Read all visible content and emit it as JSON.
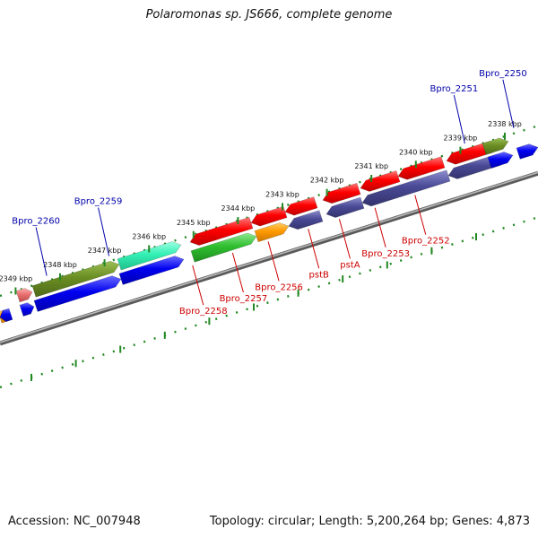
{
  "title": "Polaromonas sp. JS666, complete genome",
  "footer": {
    "accession": "Accession: NC_007948",
    "summary": "Topology: circular; Length: 5,200,264 bp; Genes: 4,873"
  },
  "colors": {
    "label_top": "#0000aa",
    "label_bottom": "#cc0000",
    "tick": "#228822",
    "backbone": "#808080"
  },
  "chart_data": {
    "type": "genome-map",
    "unit": "kbp",
    "ticks": [
      {
        "kbp": 2338,
        "label": "2338 kbp"
      },
      {
        "kbp": 2339,
        "label": "2339 kbp"
      },
      {
        "kbp": 2340,
        "label": "2340 kbp"
      },
      {
        "kbp": 2341,
        "label": "2341 kbp"
      },
      {
        "kbp": 2342,
        "label": "2342 kbp"
      },
      {
        "kbp": 2343,
        "label": "2343 kbp"
      },
      {
        "kbp": 2344,
        "label": "2344 kbp"
      },
      {
        "kbp": 2345,
        "label": "2345 kbp"
      },
      {
        "kbp": 2346,
        "label": "2346 kbp"
      },
      {
        "kbp": 2347,
        "label": "2347 kbp"
      },
      {
        "kbp": 2348,
        "label": "2348 kbp"
      },
      {
        "kbp": 2349,
        "label": "2349 kbp"
      }
    ],
    "top_labels": [
      {
        "text": "Bpro_2250",
        "kbp": 2337.8
      },
      {
        "text": "Bpro_2251",
        "kbp": 2338.9
      },
      {
        "text": "Bpro_2259",
        "kbp": 2346.9
      },
      {
        "text": "Bpro_2260",
        "kbp": 2348.3
      }
    ],
    "bottom_labels": [
      {
        "text": "Bpro_2252",
        "kbp": 2339.9
      },
      {
        "text": "Bpro_2253",
        "kbp": 2340.8
      },
      {
        "text": "pstA",
        "kbp": 2341.6
      },
      {
        "text": "pstB",
        "kbp": 2342.3
      },
      {
        "text": "Bpro_2256",
        "kbp": 2343.2
      },
      {
        "text": "Bpro_2257",
        "kbp": 2344.0
      },
      {
        "text": "Bpro_2258",
        "kbp": 2344.9
      }
    ]
  }
}
